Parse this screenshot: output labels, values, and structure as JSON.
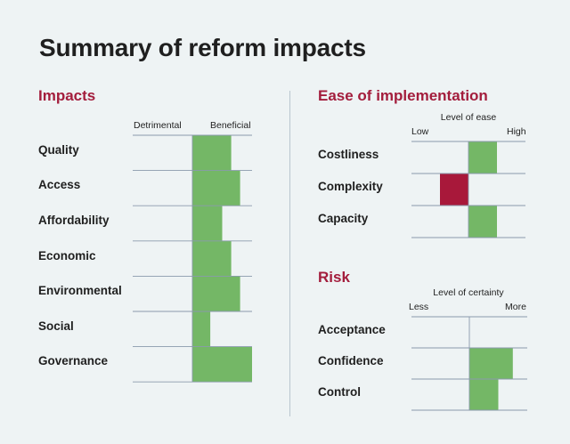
{
  "title": "Summary of reform impacts",
  "colors": {
    "background": "#eef3f4",
    "heading_accent": "#a31d3c",
    "positive_bar": "#74b766",
    "negative_bar": "#a8183a",
    "rule_lines": "#8a9aac"
  },
  "chart_data": [
    {
      "type": "bar",
      "orientation": "horizontal",
      "title": "Impacts",
      "scale_low_label": "Detrimental",
      "scale_high_label": "Beneficial",
      "categories": [
        "Quality",
        "Access",
        "Affordability",
        "Economic",
        "Environmental",
        "Social",
        "Governance"
      ],
      "values": [
        0.65,
        0.8,
        0.5,
        0.65,
        0.8,
        0.3,
        1.0
      ],
      "xlim": [
        -1,
        1
      ]
    },
    {
      "type": "bar",
      "orientation": "horizontal",
      "title": "Ease of implementation",
      "axis_title": "Level of ease",
      "scale_low_label": "Low",
      "scale_high_label": "High",
      "categories": [
        "Costliness",
        "Complexity",
        "Capacity"
      ],
      "values": [
        0.5,
        -0.5,
        0.5
      ],
      "xlim": [
        -1,
        1
      ]
    },
    {
      "type": "bar",
      "orientation": "horizontal",
      "title": "Risk",
      "axis_title": "Level of certainty",
      "scale_low_label": "Less",
      "scale_high_label": "More",
      "categories": [
        "Acceptance",
        "Confidence",
        "Control"
      ],
      "values": [
        0,
        0.75,
        0.5
      ],
      "xlim": [
        -1,
        1
      ]
    }
  ]
}
